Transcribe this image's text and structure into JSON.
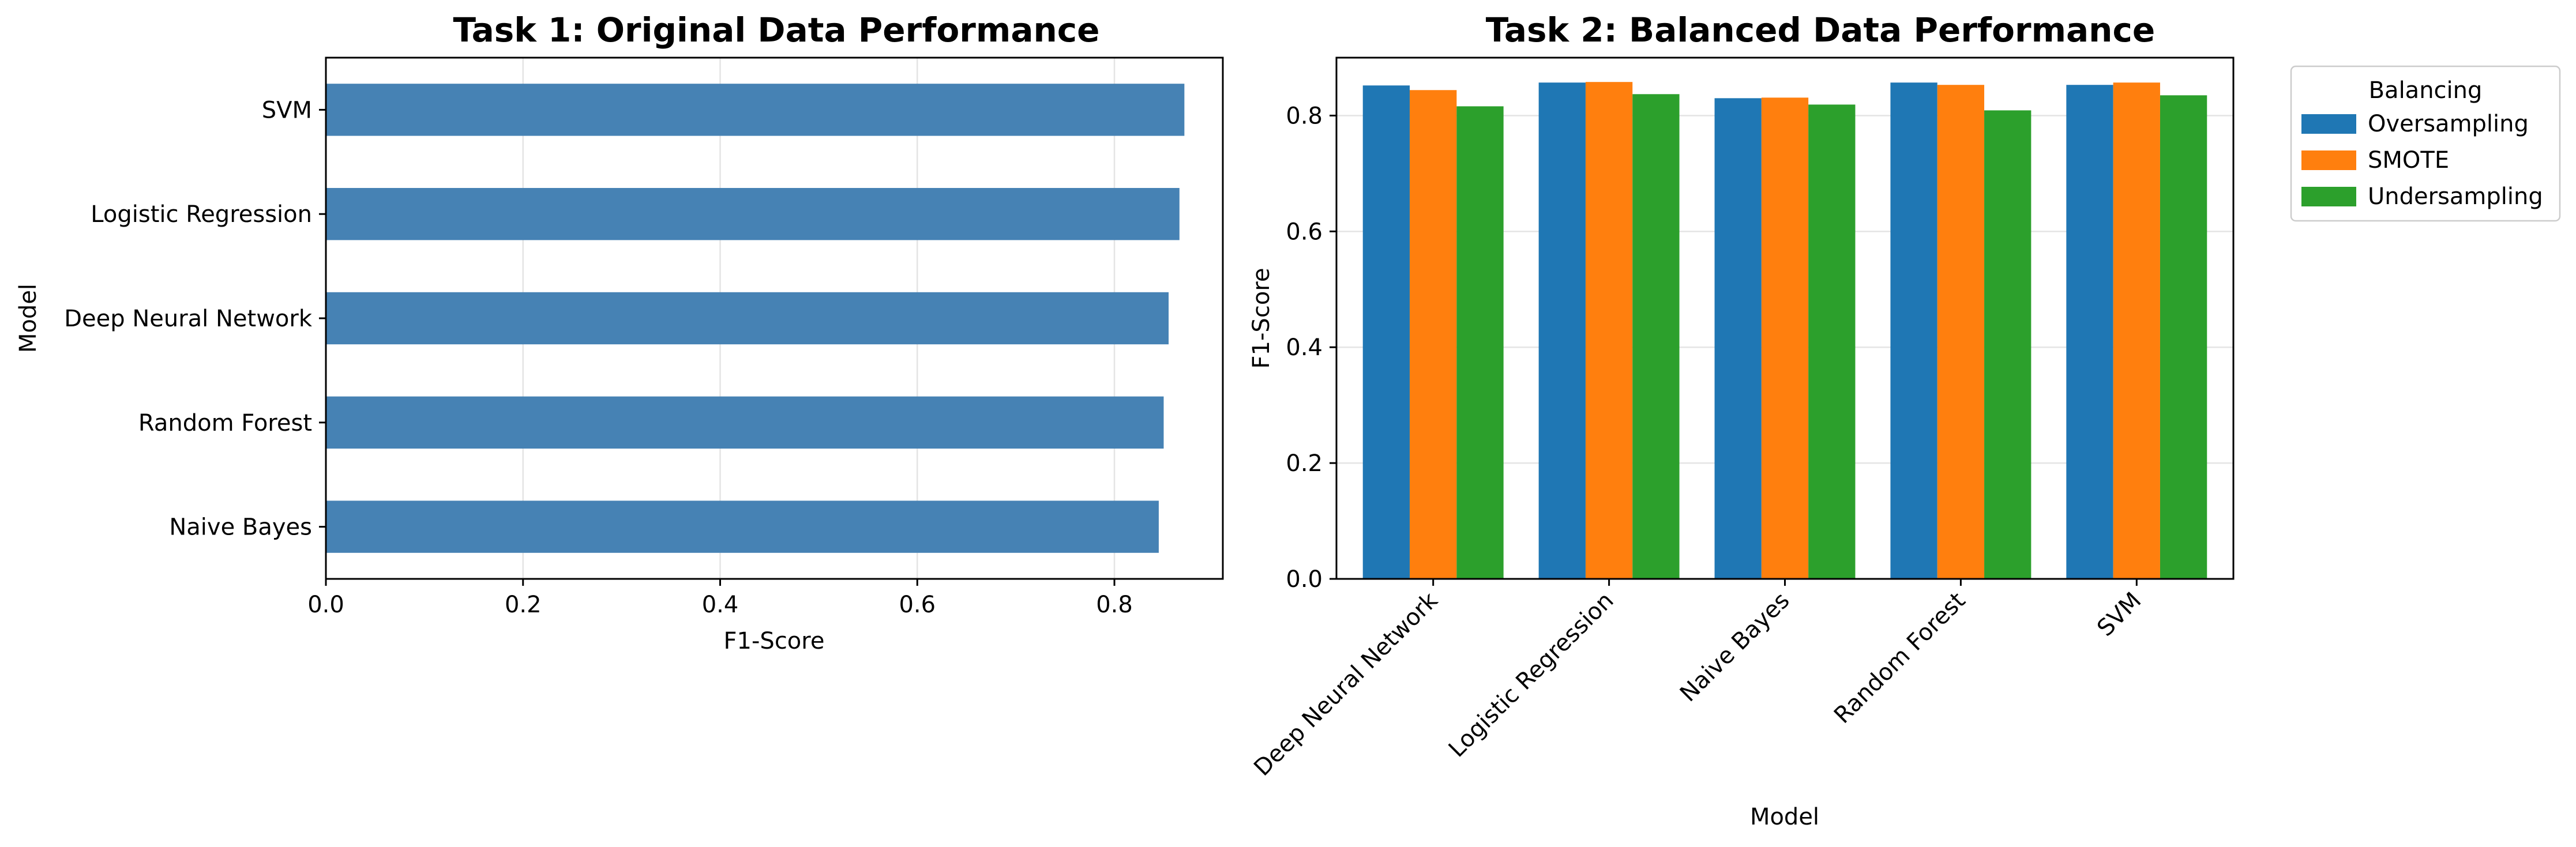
{
  "chart_data": [
    {
      "type": "bar",
      "orientation": "horizontal",
      "title": "Task 1: Original Data Performance",
      "xlabel": "F1-Score",
      "ylabel": "Model",
      "xlim": [
        0,
        0.91
      ],
      "xticks": [
        0.0,
        0.2,
        0.4,
        0.6,
        0.8
      ],
      "grid": true,
      "categories": [
        "Naive Bayes",
        "Random Forest",
        "Deep Neural Network",
        "Logistic Regression",
        "SVM"
      ],
      "values": [
        0.845,
        0.85,
        0.855,
        0.866,
        0.871
      ],
      "color": "#4682b4"
    },
    {
      "type": "bar",
      "orientation": "vertical",
      "title": "Task 2: Balanced Data Performance",
      "xlabel": "Model",
      "ylabel": "F1-Score",
      "ylim": [
        0,
        0.9
      ],
      "yticks": [
        0.0,
        0.2,
        0.4,
        0.6,
        0.8
      ],
      "grid": true,
      "legend_title": "Balancing",
      "legend_position": "outside-top-right",
      "categories": [
        "Deep Neural Network",
        "Logistic Regression",
        "Naive Bayes",
        "Random Forest",
        "SVM"
      ],
      "series": [
        {
          "name": "Oversampling",
          "color": "#1f77b4",
          "values": [
            0.852,
            0.857,
            0.83,
            0.857,
            0.853
          ]
        },
        {
          "name": "SMOTE",
          "color": "#ff7f0e",
          "values": [
            0.844,
            0.858,
            0.831,
            0.853,
            0.857
          ]
        },
        {
          "name": "Undersampling",
          "color": "#2ca02c",
          "values": [
            0.816,
            0.837,
            0.819,
            0.809,
            0.835
          ]
        }
      ]
    }
  ]
}
